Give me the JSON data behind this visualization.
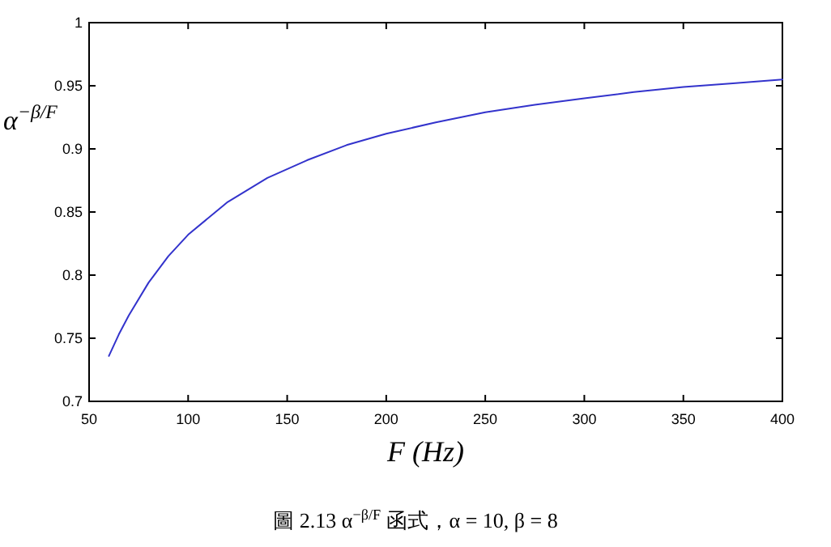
{
  "chart_data": {
    "type": "line",
    "xlabel": "F (Hz)",
    "ylabel": "α$^{−β/F}$",
    "annotations": [
      "圖 2.13 α$^{−β/F}$ 函式，α = 10, β = 8"
    ],
    "x": [
      60,
      65,
      70,
      80,
      90,
      100,
      120,
      140,
      160,
      180,
      200,
      225,
      250,
      275,
      300,
      325,
      350,
      375,
      400
    ],
    "series": [
      {
        "color": "#3333cc",
        "values": [
          0.736,
          0.753,
          0.768,
          0.794,
          0.815,
          0.832,
          0.858,
          0.877,
          0.891,
          0.903,
          0.912,
          0.921,
          0.929,
          0.935,
          0.94,
          0.945,
          0.949,
          0.952,
          0.955
        ]
      }
    ],
    "xlim": [
      50,
      400
    ],
    "ylim": [
      0.7,
      1
    ],
    "xticks": [
      50,
      100,
      150,
      200,
      250,
      300,
      350,
      400
    ],
    "yticks": [
      0.7,
      {
        "value": 0.75,
        "label": "0.75"
      },
      0.8,
      {
        "value": 0.85,
        "label": "0.85"
      },
      0.9,
      {
        "value": 0.95,
        "label": "0.95"
      },
      1
    ],
    "grid": false,
    "line_style": "solid"
  }
}
